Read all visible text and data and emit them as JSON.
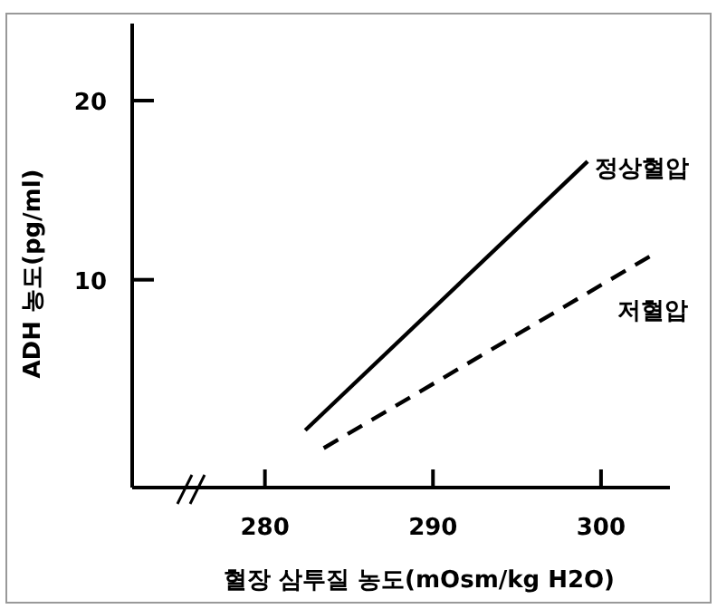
{
  "chart_data": {
    "type": "line",
    "xlabel": "혈장 삼투질 농도(mOsm/kg H2O)",
    "ylabel": "ADH 농도(pg/ml)",
    "xlim": [
      272.1,
      304.1
    ],
    "ylim": [
      -1.6,
      24.3
    ],
    "xticks": [
      280,
      290,
      300
    ],
    "yticks": [
      10,
      20
    ],
    "grid": false,
    "series": [
      {
        "name": "정상혈압",
        "color": "#000000",
        "line_style": "solid",
        "x": [
          282.4,
          299.2
        ],
        "values": [
          1.6,
          16.6
        ]
      },
      {
        "name": "저혈압",
        "color": "#000000",
        "line_style": "dashed",
        "x": [
          283.5,
          302.9
        ],
        "values": [
          0.6,
          11.3
        ]
      }
    ]
  }
}
